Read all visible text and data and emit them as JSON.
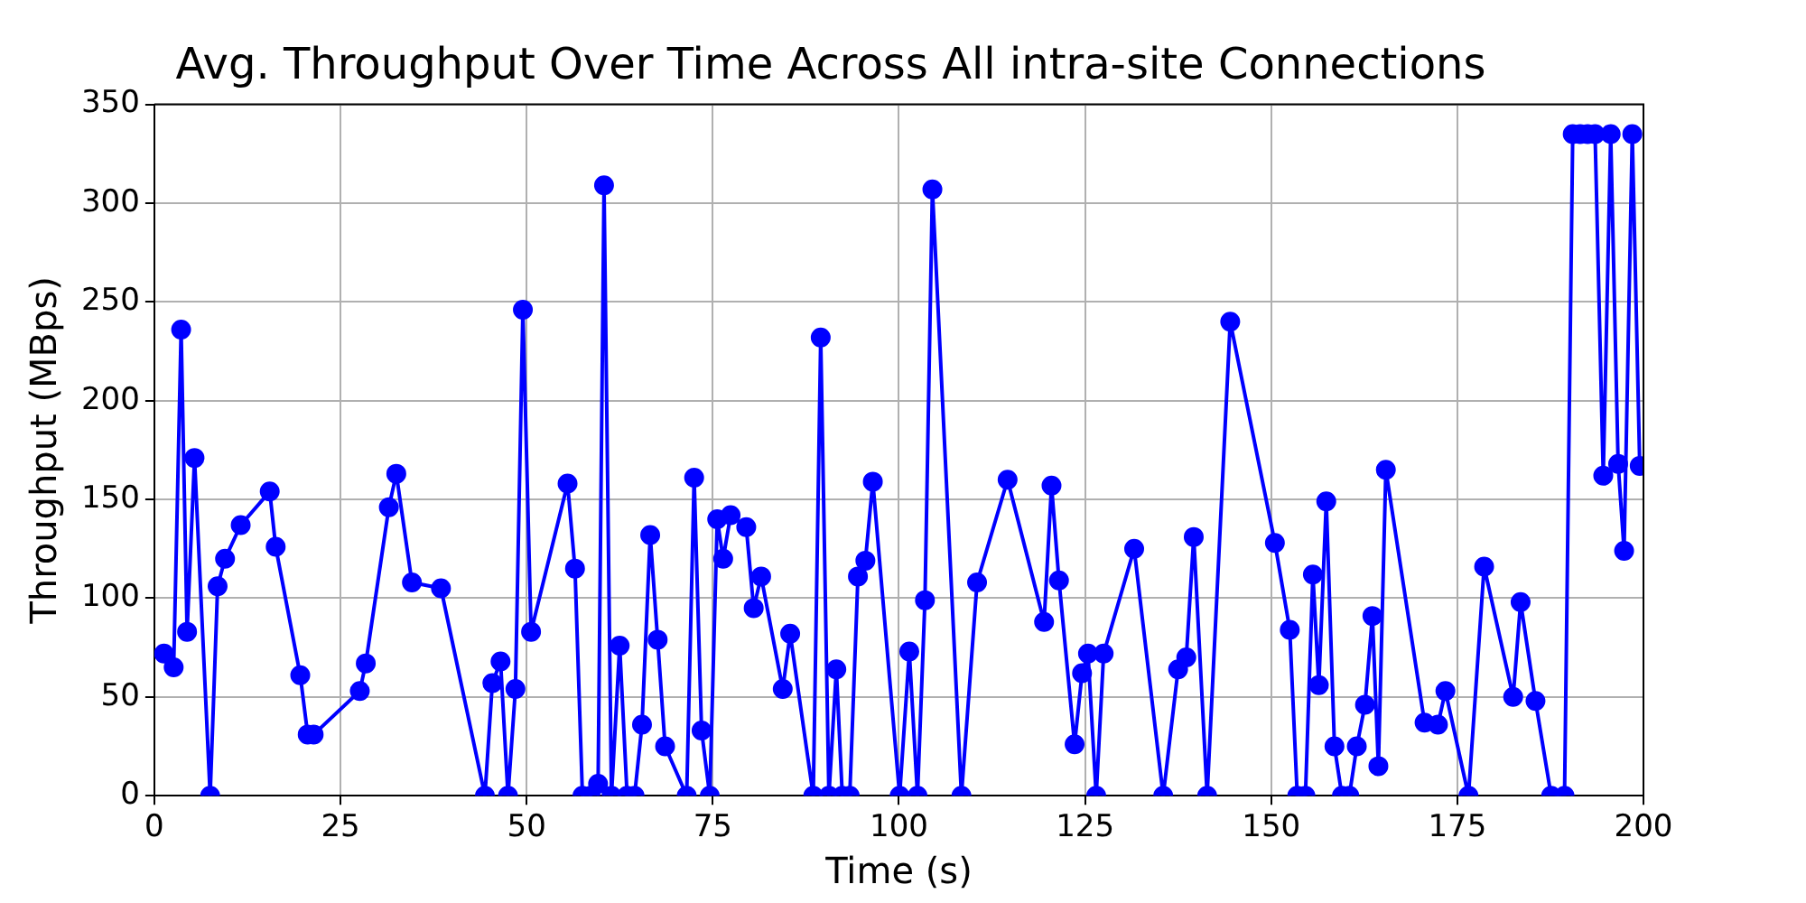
{
  "chart_data": {
    "type": "line",
    "title": "Avg. Throughput Over Time Across All intra-site Connections",
    "xlabel": "Time (s)",
    "ylabel": "Throughput (MBps)",
    "x": [
      1.3,
      2.6,
      3.6,
      4.4,
      5.4,
      7.5,
      8.5,
      9.5,
      11.6,
      15.5,
      16.3,
      19.6,
      20.6,
      21.4,
      27.6,
      28.4,
      31.5,
      32.5,
      34.6,
      38.5,
      44.4,
      45.4,
      46.5,
      47.5,
      48.5,
      49.5,
      50.6,
      55.5,
      56.5,
      57.5,
      58.6,
      59.6,
      60.4,
      61.4,
      62.5,
      63.5,
      64.5,
      65.5,
      66.6,
      67.6,
      68.6,
      71.5,
      72.5,
      73.5,
      74.6,
      75.6,
      76.4,
      77.4,
      79.5,
      80.5,
      81.5,
      84.4,
      85.4,
      88.5,
      89.5,
      90.6,
      91.6,
      92.4,
      93.4,
      94.5,
      95.5,
      96.5,
      100.1,
      101.4,
      102.5,
      103.5,
      104.5,
      108.4,
      110.5,
      114.6,
      119.5,
      120.5,
      121.5,
      123.6,
      124.6,
      125.4,
      126.5,
      127.5,
      131.6,
      135.5,
      137.5,
      138.6,
      139.6,
      141.4,
      144.5,
      150.5,
      152.5,
      153.5,
      154.6,
      155.6,
      156.4,
      157.4,
      158.5,
      159.5,
      160.5,
      161.5,
      162.6,
      163.6,
      164.4,
      165.4,
      170.6,
      172.4,
      173.4,
      176.5,
      178.6,
      182.5,
      183.5,
      185.5,
      187.6,
      189.4,
      190.5,
      191.5,
      192.5,
      193.5,
      194.6,
      195.6,
      196.6,
      197.4,
      198.5,
      199.5
    ],
    "series": [
      {
        "color": "#0000ff",
        "values": [
          72,
          65,
          236,
          83,
          171,
          0,
          106,
          120,
          137,
          154,
          126,
          61,
          31,
          31,
          53,
          67,
          146,
          163,
          108,
          105,
          0,
          57,
          68,
          0,
          54,
          246,
          83,
          158,
          115,
          0,
          0,
          6,
          309,
          0,
          76,
          0,
          0,
          36,
          132,
          79,
          25,
          0,
          161,
          33,
          0,
          140,
          120,
          142,
          136,
          95,
          111,
          54,
          82,
          0,
          232,
          0,
          64,
          0,
          0,
          111,
          119,
          159,
          0,
          73,
          0,
          99,
          307,
          0,
          108,
          160,
          88,
          157,
          109,
          26,
          62,
          72,
          0,
          72,
          125,
          0,
          64,
          70,
          131,
          0,
          240,
          128,
          84,
          0,
          0,
          112,
          56,
          149,
          25,
          0,
          0,
          25,
          46,
          91,
          15,
          165,
          37,
          36,
          53,
          0,
          116,
          50,
          98,
          48,
          0,
          0,
          335,
          335,
          335,
          335,
          162,
          335,
          168,
          124,
          335,
          167
        ]
      }
    ],
    "xlim": [
      0,
      200
    ],
    "xticks": [
      0,
      25,
      50,
      75,
      100,
      125,
      150,
      175,
      200
    ],
    "ylim": [
      0,
      350
    ],
    "yticks": [
      0,
      50,
      100,
      150,
      200,
      250,
      300,
      350
    ],
    "grid": true,
    "marker": "circle",
    "line_style": "solid",
    "legend": false
  }
}
